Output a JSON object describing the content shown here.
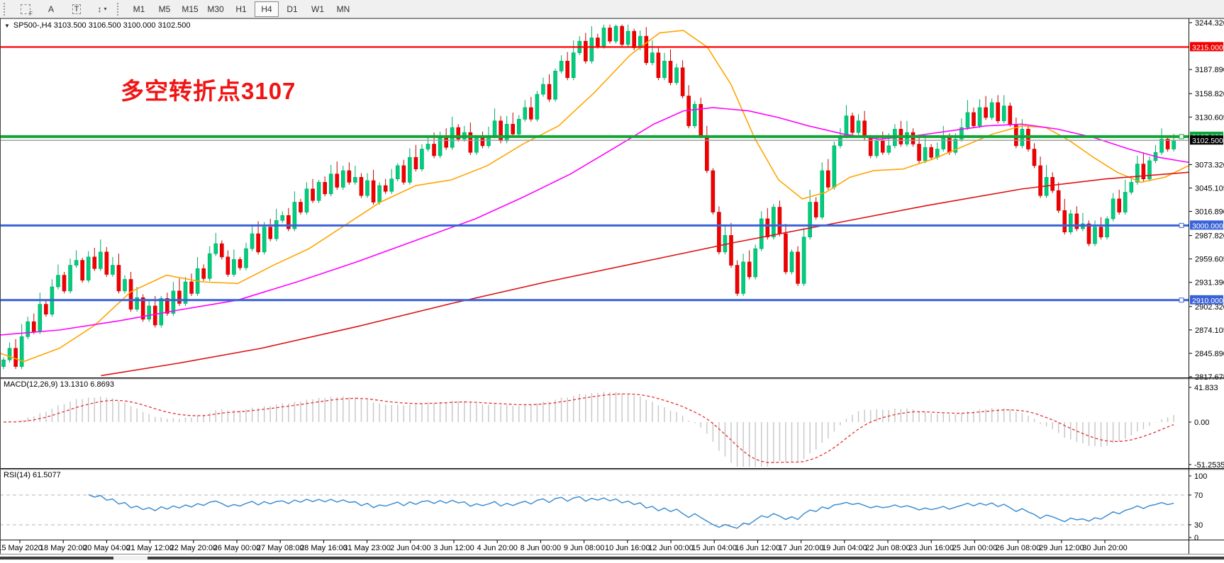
{
  "toolbar": {
    "icon_buttons": [
      {
        "name": "template-f",
        "glyph": "",
        "sub": "F"
      },
      {
        "name": "insert-label",
        "glyph": "A"
      },
      {
        "name": "insert-text",
        "glyph": "T"
      },
      {
        "name": "arrow-objects",
        "glyph": "↕",
        "caret": "▾"
      }
    ],
    "timeframes": {
      "items": [
        "M1",
        "M5",
        "M15",
        "M30",
        "H1",
        "H4",
        "D1",
        "W1",
        "MN"
      ],
      "active": "H4"
    }
  },
  "chart": {
    "dropdown_glyph": "▼",
    "symbol_line": "SP500-,H4  3103.500 3106.500 3100.000 3102.500",
    "annotation": {
      "text": "多空转折点3107",
      "color": "#f01414"
    },
    "y_ticks": [
      3244.32,
      3187.89,
      3158.82,
      3130.605,
      3073.32,
      3045.105,
      3016.89,
      2987.82,
      2959.605,
      2931.39,
      2902.32,
      2874.105,
      2845.89,
      2817.675
    ],
    "levels": [
      {
        "price": 3215,
        "label": "3215.000",
        "line": "#ff0000",
        "tag": "#f20000",
        "width": 2.2
      },
      {
        "price": 3107,
        "label": "3107.000",
        "line": "#12a537",
        "tag": "#0ca53c",
        "width": 4,
        "handle": true
      },
      {
        "price": 3102.5,
        "label": "3102.500",
        "line": "#9a9a9a",
        "tag": "#000000",
        "width": 1.4
      },
      {
        "price": 3000,
        "label": "3000.000",
        "line": "#3a62d8",
        "tag": "#3a62d8",
        "width": 3,
        "handle": true
      },
      {
        "price": 2910,
        "label": "2910.000",
        "line": "#3a62d8",
        "tag": "#3a62d8",
        "width": 3,
        "handle": true
      }
    ]
  },
  "chart_data": {
    "type": "candlestick",
    "symbol": "SP500-",
    "timeframe": "H4",
    "ohlc_display": {
      "open": "3103.500",
      "high": "3106.500",
      "low": "3100.000",
      "close": "3102.500"
    },
    "candle_up_color": "#00cd7e",
    "candle_down_color": "#f20000",
    "closes": [
      2838,
      2852,
      2830,
      2866,
      2884,
      2872,
      2905,
      2893,
      2926,
      2940,
      2921,
      2952,
      2958,
      2934,
      2962,
      2948,
      2968,
      2941,
      2952,
      2921,
      2935,
      2899,
      2913,
      2887,
      2903,
      2880,
      2912,
      2894,
      2921,
      2906,
      2932,
      2918,
      2948,
      2936,
      2966,
      2978,
      2962,
      2941,
      2959,
      2949,
      2972,
      2990,
      2968,
      2998,
      2984,
      3006,
      3012,
      2996,
      3028,
      3016,
      3044,
      3030,
      3052,
      3038,
      3062,
      3046,
      3066,
      3052,
      3058,
      3036,
      3054,
      3028,
      3048,
      3041,
      3056,
      3072,
      3052,
      3082,
      3068,
      3092,
      3098,
      3084,
      3108,
      3094,
      3118,
      3104,
      3112,
      3088,
      3106,
      3096,
      3108,
      3126,
      3102,
      3122,
      3110,
      3128,
      3142,
      3128,
      3158,
      3170,
      3152,
      3186,
      3198,
      3178,
      3208,
      3222,
      3198,
      3226,
      3216,
      3238,
      3222,
      3240,
      3218,
      3234,
      3214,
      3228,
      3196,
      3208,
      3178,
      3198,
      3172,
      3190,
      3156,
      3120,
      3146,
      3108,
      3066,
      3016,
      2968,
      2988,
      2952,
      2918,
      2956,
      2938,
      2972,
      3008,
      2986,
      3022,
      2990,
      2944,
      2968,
      2930,
      2986,
      3028,
      3010,
      3066,
      3046,
      3096,
      3108,
      3132,
      3112,
      3126,
      3106,
      3084,
      3102,
      3088,
      3096,
      3116,
      3098,
      3112,
      3098,
      3078,
      3094,
      3082,
      3092,
      3108,
      3088,
      3104,
      3118,
      3136,
      3120,
      3142,
      3130,
      3148,
      3126,
      3144,
      3122,
      3096,
      3116,
      3092,
      3072,
      3036,
      3058,
      3042,
      3018,
      2992,
      3014,
      2996,
      3002,
      2978,
      2998,
      2986,
      3008,
      3032,
      3016,
      3040,
      3052,
      3074,
      3056,
      3078,
      3088,
      3104,
      3092,
      3102.5
    ],
    "moving_averages": [
      {
        "name": "ma-fast-orange",
        "color": "#ffa500",
        "points": [
          [
            0,
            2846
          ],
          [
            0.02,
            2836
          ],
          [
            0.05,
            2852
          ],
          [
            0.08,
            2880
          ],
          [
            0.11,
            2920
          ],
          [
            0.14,
            2940
          ],
          [
            0.17,
            2932
          ],
          [
            0.2,
            2930
          ],
          [
            0.23,
            2952
          ],
          [
            0.26,
            2972
          ],
          [
            0.29,
            3000
          ],
          [
            0.32,
            3028
          ],
          [
            0.35,
            3048
          ],
          [
            0.38,
            3055
          ],
          [
            0.41,
            3072
          ],
          [
            0.44,
            3098
          ],
          [
            0.47,
            3120
          ],
          [
            0.5,
            3160
          ],
          [
            0.53,
            3205
          ],
          [
            0.555,
            3232
          ],
          [
            0.575,
            3235
          ],
          [
            0.595,
            3215
          ],
          [
            0.615,
            3170
          ],
          [
            0.635,
            3105
          ],
          [
            0.655,
            3055
          ],
          [
            0.675,
            3032
          ],
          [
            0.695,
            3040
          ],
          [
            0.715,
            3058
          ],
          [
            0.735,
            3066
          ],
          [
            0.76,
            3068
          ],
          [
            0.785,
            3080
          ],
          [
            0.81,
            3095
          ],
          [
            0.835,
            3110
          ],
          [
            0.86,
            3120
          ],
          [
            0.88,
            3118
          ],
          [
            0.9,
            3102
          ],
          [
            0.92,
            3082
          ],
          [
            0.94,
            3064
          ],
          [
            0.96,
            3052
          ],
          [
            0.98,
            3058
          ],
          [
            1,
            3072
          ]
        ]
      },
      {
        "name": "ma-mid-magenta",
        "color": "#ff00ff",
        "points": [
          [
            0,
            2868
          ],
          [
            0.05,
            2874
          ],
          [
            0.1,
            2885
          ],
          [
            0.15,
            2898
          ],
          [
            0.2,
            2910
          ],
          [
            0.25,
            2932
          ],
          [
            0.3,
            2956
          ],
          [
            0.35,
            2982
          ],
          [
            0.4,
            3008
          ],
          [
            0.44,
            3034
          ],
          [
            0.48,
            3062
          ],
          [
            0.52,
            3096
          ],
          [
            0.55,
            3122
          ],
          [
            0.575,
            3138
          ],
          [
            0.6,
            3142
          ],
          [
            0.63,
            3138
          ],
          [
            0.655,
            3130
          ],
          [
            0.68,
            3120
          ],
          [
            0.71,
            3110
          ],
          [
            0.74,
            3104
          ],
          [
            0.77,
            3108
          ],
          [
            0.8,
            3114
          ],
          [
            0.83,
            3120
          ],
          [
            0.86,
            3122
          ],
          [
            0.89,
            3116
          ],
          [
            0.92,
            3106
          ],
          [
            0.95,
            3092
          ],
          [
            0.975,
            3082
          ],
          [
            1,
            3076
          ]
        ]
      },
      {
        "name": "ma-slow-red",
        "color": "#dd1111",
        "points": [
          [
            0.085,
            2819
          ],
          [
            0.15,
            2834
          ],
          [
            0.22,
            2852
          ],
          [
            0.3,
            2878
          ],
          [
            0.38,
            2906
          ],
          [
            0.46,
            2932
          ],
          [
            0.54,
            2956
          ],
          [
            0.62,
            2980
          ],
          [
            0.7,
            3002
          ],
          [
            0.78,
            3024
          ],
          [
            0.86,
            3044
          ],
          [
            0.93,
            3056
          ],
          [
            1,
            3064
          ]
        ]
      }
    ],
    "macd": {
      "label": "MACD(12,26,9) 13.1310 6.8693",
      "fast": 12,
      "slow": 26,
      "signal": 9,
      "axis_labels": [
        "41.833",
        "0.00",
        "-51.2535"
      ],
      "hist_color": "#c9c9c9",
      "signal_color": "#e03434"
    },
    "rsi": {
      "label": "RSI(14) 61.5077",
      "period": 14,
      "axis_labels": [
        "100",
        "70",
        "30",
        "0"
      ],
      "levels": [
        70,
        30
      ],
      "color": "#3f8fd2"
    },
    "x_labels": [
      "15 May 2020",
      "18 May 20:00",
      "20 May 04:00",
      "21 May 12:00",
      "22 May 20:00",
      "26 May 00:00",
      "27 May 08:00",
      "28 May 16:00",
      "31 May 23:00",
      "2 Jun 04:00",
      "3 Jun 12:00",
      "4 Jun 20:00",
      "8 Jun 00:00",
      "9 Jun 08:00",
      "10 Jun 16:00",
      "12 Jun 00:00",
      "15 Jun 04:00",
      "16 Jun 12:00",
      "17 Jun 20:00",
      "19 Jun 04:00",
      "22 Jun 08:00",
      "23 Jun 16:00",
      "25 Jun 00:00",
      "26 Jun 08:00",
      "29 Jun 12:00",
      "30 Jun 20:00"
    ]
  }
}
